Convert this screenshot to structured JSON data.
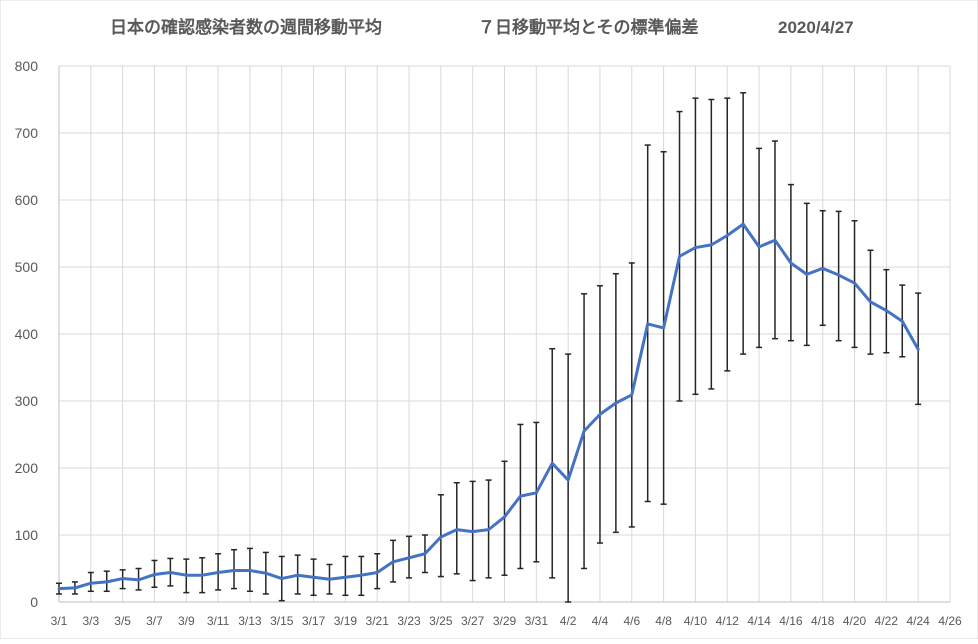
{
  "chart_data": {
    "type": "line",
    "title": "日本の確認感染者数の週間移動平均",
    "subtitle": "７日移動平均とその標準偏差",
    "date": "2020/4/27",
    "xlabel": "",
    "ylabel": "",
    "ylim": [
      0,
      800
    ],
    "yticks": [
      "0",
      "100",
      "200",
      "300",
      "400",
      "500",
      "600",
      "700",
      "800"
    ],
    "grid": true,
    "x_tick_labels": [
      "3/1",
      "3/3",
      "3/5",
      "3/7",
      "3/9",
      "3/11",
      "3/13",
      "3/15",
      "3/17",
      "3/19",
      "3/21",
      "3/23",
      "3/25",
      "3/27",
      "3/29",
      "3/31",
      "4/2",
      "4/4",
      "4/6",
      "4/8",
      "4/10",
      "4/12",
      "4/14",
      "4/16",
      "4/18",
      "4/20",
      "4/22",
      "4/24",
      "4/26"
    ],
    "categories": [
      "3/1",
      "3/2",
      "3/3",
      "3/4",
      "3/5",
      "3/6",
      "3/7",
      "3/8",
      "3/9",
      "3/10",
      "3/11",
      "3/12",
      "3/13",
      "3/14",
      "3/15",
      "3/16",
      "3/17",
      "3/18",
      "3/19",
      "3/20",
      "3/21",
      "3/22",
      "3/23",
      "3/24",
      "3/25",
      "3/26",
      "3/27",
      "3/28",
      "3/29",
      "3/30",
      "3/31",
      "4/1",
      "4/2",
      "4/3",
      "4/4",
      "4/5",
      "4/6",
      "4/7",
      "4/8",
      "4/9",
      "4/10",
      "4/11",
      "4/12",
      "4/13",
      "4/14",
      "4/15",
      "4/16",
      "4/17",
      "4/18",
      "4/19",
      "4/20",
      "4/21",
      "4/22",
      "4/23",
      "4/24"
    ],
    "series": [
      {
        "name": "",
        "color": "#4472C4",
        "values": [
          20,
          21,
          28,
          30,
          35,
          33,
          41,
          44,
          40,
          40,
          44,
          47,
          47,
          43,
          35,
          40,
          37,
          34,
          37,
          40,
          44,
          60,
          66,
          72,
          97,
          108,
          105,
          108,
          127,
          158,
          163,
          207,
          182,
          255,
          280,
          297,
          309,
          415,
          409,
          516,
          529,
          533,
          547,
          564,
          530,
          540,
          506,
          489,
          498,
          488,
          476,
          448,
          435,
          419,
          377
        ],
        "err_low": [
          12,
          12,
          16,
          16,
          20,
          18,
          22,
          24,
          14,
          14,
          18,
          20,
          16,
          12,
          2,
          12,
          10,
          12,
          10,
          10,
          20,
          30,
          36,
          44,
          38,
          42,
          32,
          36,
          40,
          50,
          60,
          36,
          0,
          50,
          88,
          104,
          112,
          150,
          146,
          300,
          310,
          318,
          345,
          370,
          380,
          393,
          390,
          383,
          413,
          390,
          380,
          370,
          372,
          366,
          295
        ],
        "err_high": [
          28,
          30,
          44,
          46,
          48,
          50,
          62,
          65,
          64,
          66,
          72,
          78,
          80,
          74,
          68,
          70,
          64,
          56,
          68,
          68,
          72,
          92,
          98,
          100,
          160,
          178,
          180,
          182,
          210,
          265,
          268,
          378,
          370,
          460,
          472,
          490,
          506,
          682,
          672,
          732,
          752,
          750,
          752,
          760,
          677,
          688,
          623,
          595,
          584,
          583,
          569,
          525,
          496,
          473,
          461
        ]
      }
    ]
  }
}
